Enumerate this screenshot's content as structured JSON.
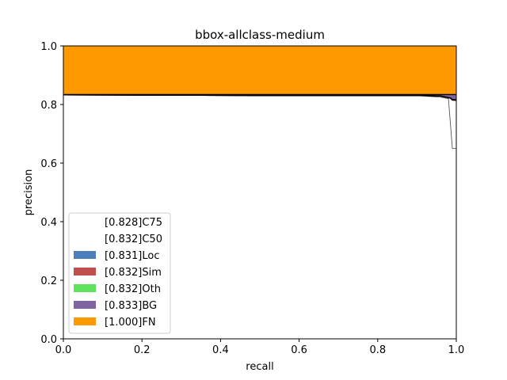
{
  "chart_data": {
    "type": "area",
    "title": "bbox-allclass-medium",
    "xlabel": "recall",
    "ylabel": "precision",
    "xlim": [
      0,
      1
    ],
    "ylim": [
      0,
      1
    ],
    "x_ticks": [
      "0.0",
      "0.2",
      "0.4",
      "0.6",
      "0.8",
      "1.0"
    ],
    "y_ticks": [
      "0.0",
      "0.2",
      "0.4",
      "0.6",
      "0.8",
      "1.0"
    ],
    "legend_position": "lower-left",
    "series": [
      {
        "name": "C75",
        "label": "[0.828]C75",
        "ap": 0.828,
        "color": "#ffffff",
        "x": [
          0,
          0.49,
          0.9,
          0.96,
          0.98,
          0.99,
          1.0
        ],
        "y": [
          0.833,
          0.83,
          0.83,
          0.825,
          0.82,
          0.65,
          0.65
        ]
      },
      {
        "name": "C50",
        "label": "[0.832]C50",
        "ap": 0.832,
        "color": "#ffffff",
        "x": [
          0,
          0.49,
          0.9,
          0.96,
          0.985,
          0.99,
          1.0
        ],
        "y": [
          0.833,
          0.831,
          0.831,
          0.829,
          0.822,
          0.815,
          0.814
        ]
      },
      {
        "name": "Loc",
        "label": "[0.831]Loc",
        "ap": 0.831,
        "color": "#4c7ebb",
        "x": [
          0,
          0.49,
          0.9,
          0.96,
          0.985,
          0.99,
          1.0
        ],
        "y": [
          0.833,
          0.831,
          0.831,
          0.829,
          0.822,
          0.816,
          0.815
        ]
      },
      {
        "name": "Sim",
        "label": "[0.832]Sim",
        "ap": 0.832,
        "color": "#c0504d",
        "x": [
          0,
          0.49,
          0.9,
          0.96,
          0.985,
          0.99,
          1.0
        ],
        "y": [
          0.833,
          0.831,
          0.831,
          0.829,
          0.822,
          0.816,
          0.815
        ]
      },
      {
        "name": "Oth",
        "label": "[0.832]Oth",
        "ap": 0.832,
        "color": "#5fe35f",
        "x": [
          0,
          0.49,
          0.9,
          0.96,
          0.985,
          0.99,
          1.0
        ],
        "y": [
          0.833,
          0.831,
          0.831,
          0.829,
          0.822,
          0.817,
          0.816
        ]
      },
      {
        "name": "BG",
        "label": "[0.833]BG",
        "ap": 0.833,
        "color": "#8064a2",
        "x": [
          0,
          0.49,
          0.9,
          0.96,
          0.985,
          0.99,
          1.0
        ],
        "y": [
          0.834,
          0.834,
          0.834,
          0.834,
          0.834,
          0.834,
          0.834
        ]
      },
      {
        "name": "FN",
        "label": "[1.000]FN",
        "ap": 1.0,
        "color": "#ff9900",
        "x": [
          0,
          1.0
        ],
        "y": [
          1.0,
          1.0
        ]
      }
    ]
  }
}
